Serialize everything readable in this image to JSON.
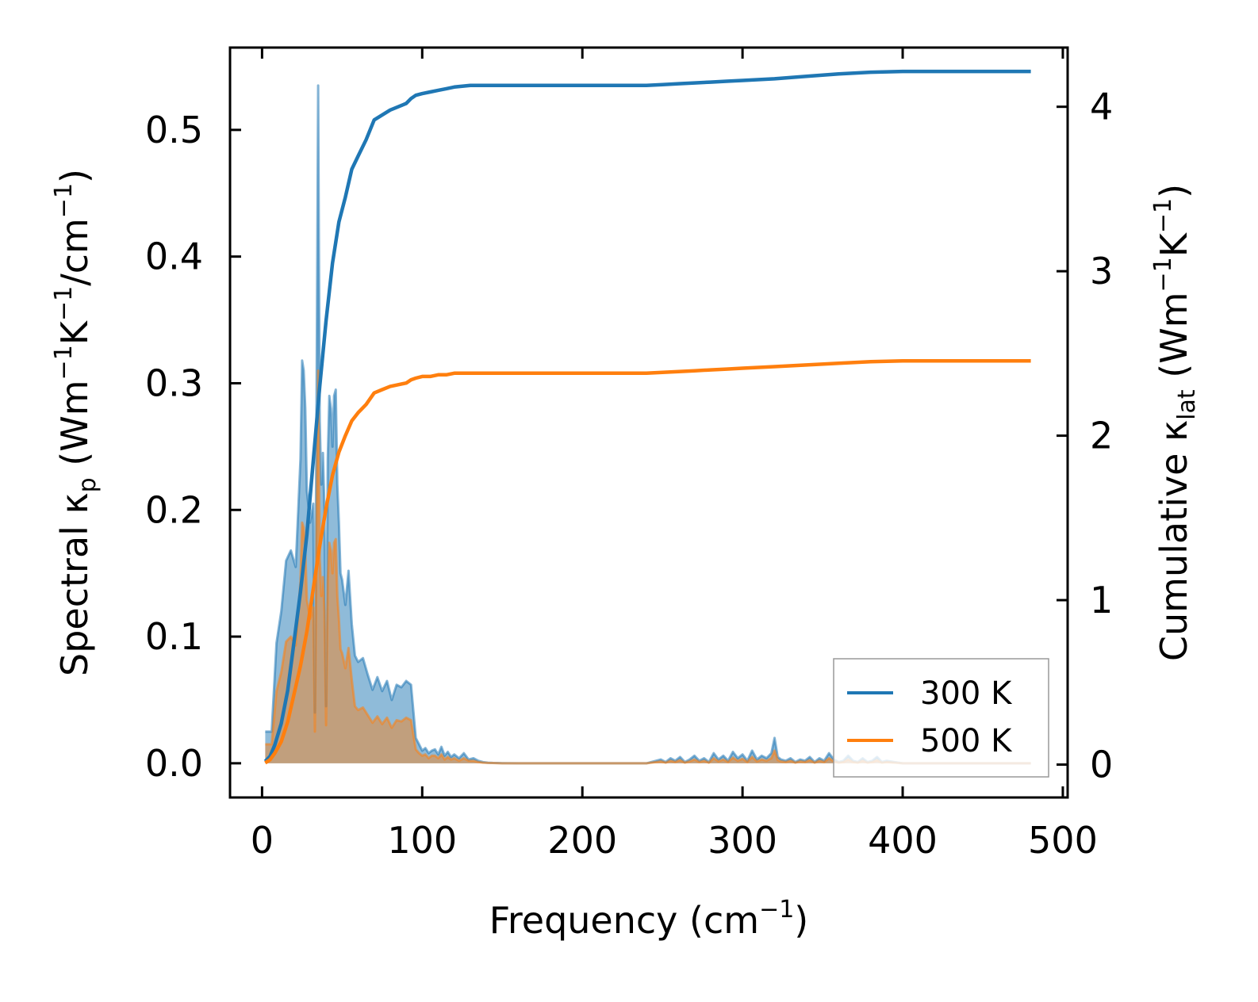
{
  "chart_data": {
    "type": "line",
    "xlabel": "Frequency (cm⁻¹)",
    "ylabel_left": "Spectral κₚ (Wm⁻¹K⁻¹/cm⁻¹)",
    "ylabel_right": "Cumulative κₗₐₜ (Wm⁻¹K⁻¹)",
    "xlim": [
      -20,
      503
    ],
    "ylim_left": [
      -0.027,
      0.565
    ],
    "ylim_right": [
      -0.2,
      4.36
    ],
    "x_ticks": [
      0,
      100,
      200,
      300,
      400,
      500
    ],
    "y_ticks_left": [
      0.0,
      0.1,
      0.2,
      0.3,
      0.4,
      0.5
    ],
    "y_ticks_right": [
      0,
      1,
      2,
      3,
      4
    ],
    "x_tick_labels": [
      "0",
      "100",
      "200",
      "300",
      "400",
      "500"
    ],
    "y_tick_labels_left": [
      "0.0",
      "0.1",
      "0.2",
      "0.3",
      "0.4",
      "0.5"
    ],
    "y_tick_labels_right": [
      "0",
      "1",
      "2",
      "3",
      "4"
    ],
    "legend": {
      "location": "lower-right",
      "entries": [
        "300 K",
        "500 K"
      ]
    },
    "series": [
      {
        "name": "300 K",
        "color": "#1f77b4",
        "spectral_x": [
          2,
          4,
          6,
          9,
          12,
          15,
          18,
          21,
          24,
          25,
          26,
          27,
          28,
          30,
          32,
          33,
          34,
          35,
          36,
          37,
          38,
          39,
          40,
          41,
          42,
          43,
          44,
          45,
          46,
          47,
          48,
          49,
          50,
          52,
          54,
          56,
          58,
          60,
          63,
          66,
          69,
          72,
          75,
          78,
          81,
          84,
          87,
          90,
          93,
          96,
          98,
          100,
          102,
          104,
          106,
          108,
          110,
          112,
          114,
          116,
          118,
          120,
          123,
          126,
          129,
          132,
          135,
          138,
          141,
          144,
          147,
          150,
          160,
          180,
          200,
          220,
          240,
          243,
          246,
          249,
          252,
          255,
          258,
          261,
          264,
          267,
          270,
          273,
          276,
          279,
          282,
          285,
          288,
          291,
          294,
          297,
          300,
          303,
          306,
          309,
          312,
          315,
          318,
          320,
          322,
          324,
          327,
          330,
          333,
          336,
          339,
          342,
          345,
          348,
          351,
          354,
          357,
          360,
          363,
          366,
          369,
          372,
          375,
          378,
          381,
          384,
          387,
          390,
          395,
          400,
          410,
          420,
          440,
          460,
          480
        ],
        "spectral_y": [
          0.025,
          0.025,
          0.025,
          0.095,
          0.12,
          0.16,
          0.168,
          0.155,
          0.24,
          0.318,
          0.31,
          0.28,
          0.215,
          0.19,
          0.205,
          0.04,
          0.28,
          0.535,
          0.27,
          0.22,
          0.245,
          0.2,
          0.045,
          0.24,
          0.29,
          0.28,
          0.25,
          0.29,
          0.295,
          0.22,
          0.19,
          0.15,
          0.145,
          0.125,
          0.152,
          0.11,
          0.085,
          0.08,
          0.083,
          0.07,
          0.058,
          0.068,
          0.057,
          0.065,
          0.05,
          0.062,
          0.06,
          0.065,
          0.062,
          0.02,
          0.015,
          0.01,
          0.012,
          0.008,
          0.01,
          0.011,
          0.007,
          0.013,
          0.006,
          0.009,
          0.005,
          0.007,
          0.004,
          0.008,
          0.003,
          0.004,
          0.002,
          0.001,
          0.0005,
          0.0003,
          0.0002,
          0.0001,
          0.0,
          0.0,
          0.0,
          0.0,
          0.0,
          0.001,
          0.002,
          0.003,
          0.001,
          0.004,
          0.002,
          0.005,
          0.001,
          0.003,
          0.006,
          0.002,
          0.004,
          0.001,
          0.008,
          0.003,
          0.006,
          0.002,
          0.009,
          0.004,
          0.007,
          0.002,
          0.01,
          0.003,
          0.006,
          0.004,
          0.008,
          0.02,
          0.005,
          0.003,
          0.002,
          0.004,
          0.001,
          0.003,
          0.002,
          0.005,
          0.001,
          0.004,
          0.002,
          0.008,
          0.003,
          0.001,
          0.002,
          0.006,
          0.002,
          0.001,
          0.004,
          0.001,
          0.002,
          0.005,
          0.001,
          0.002,
          0.001,
          0.0,
          0.0,
          0.0,
          0.0,
          0.0,
          0.0
        ],
        "cumulative_x": [
          2,
          5,
          8,
          12,
          16,
          20,
          24,
          28,
          32,
          36,
          40,
          44,
          48,
          52,
          56,
          60,
          65,
          70,
          75,
          80,
          85,
          90,
          93,
          96,
          100,
          105,
          110,
          115,
          120,
          130,
          140,
          150,
          170,
          200,
          230,
          240,
          250,
          260,
          270,
          280,
          290,
          300,
          320,
          340,
          360,
          380,
          400,
          420,
          440,
          460,
          480
        ],
        "cumulative_y": [
          0.02,
          0.05,
          0.12,
          0.25,
          0.45,
          0.75,
          1.05,
          1.4,
          1.85,
          2.3,
          2.7,
          3.05,
          3.3,
          3.45,
          3.62,
          3.7,
          3.8,
          3.92,
          3.95,
          3.98,
          4.0,
          4.02,
          4.05,
          4.07,
          4.08,
          4.09,
          4.1,
          4.11,
          4.12,
          4.13,
          4.13,
          4.13,
          4.13,
          4.13,
          4.13,
          4.13,
          4.135,
          4.14,
          4.145,
          4.15,
          4.155,
          4.16,
          4.17,
          4.185,
          4.2,
          4.21,
          4.215,
          4.215,
          4.215,
          4.215,
          4.215
        ]
      },
      {
        "name": "500 K",
        "color": "#ff7f0e",
        "spectral_x": [
          2,
          4,
          6,
          9,
          12,
          15,
          18,
          21,
          24,
          25,
          26,
          27,
          28,
          30,
          32,
          33,
          34,
          35,
          36,
          37,
          38,
          39,
          40,
          41,
          42,
          43,
          44,
          45,
          46,
          47,
          48,
          49,
          50,
          52,
          54,
          56,
          58,
          60,
          63,
          66,
          69,
          72,
          75,
          78,
          81,
          84,
          87,
          90,
          93,
          96,
          98,
          100,
          102,
          104,
          106,
          108,
          110,
          112,
          114,
          116,
          118,
          120,
          123,
          126,
          129,
          132,
          135,
          138,
          141,
          144,
          147,
          150,
          160,
          180,
          200,
          220,
          240,
          243,
          246,
          249,
          252,
          255,
          258,
          261,
          264,
          267,
          270,
          273,
          276,
          279,
          282,
          285,
          288,
          291,
          294,
          297,
          300,
          303,
          306,
          309,
          312,
          315,
          318,
          320,
          322,
          324,
          327,
          330,
          333,
          336,
          339,
          342,
          345,
          348,
          351,
          354,
          357,
          360,
          363,
          366,
          369,
          372,
          375,
          378,
          381,
          384,
          387,
          390,
          395,
          400,
          410,
          420,
          440,
          460,
          480
        ],
        "spectral_y": [
          0.015,
          0.015,
          0.015,
          0.057,
          0.072,
          0.096,
          0.1,
          0.093,
          0.144,
          0.19,
          0.186,
          0.168,
          0.129,
          0.114,
          0.123,
          0.025,
          0.168,
          0.31,
          0.162,
          0.132,
          0.147,
          0.12,
          0.03,
          0.144,
          0.174,
          0.168,
          0.15,
          0.174,
          0.177,
          0.132,
          0.114,
          0.09,
          0.087,
          0.075,
          0.091,
          0.066,
          0.045,
          0.042,
          0.044,
          0.038,
          0.032,
          0.037,
          0.031,
          0.036,
          0.028,
          0.034,
          0.033,
          0.036,
          0.034,
          0.011,
          0.008,
          0.006,
          0.007,
          0.004,
          0.006,
          0.006,
          0.004,
          0.007,
          0.003,
          0.005,
          0.003,
          0.004,
          0.002,
          0.004,
          0.002,
          0.002,
          0.001,
          0.0005,
          0.0003,
          0.0002,
          0.0001,
          0.0,
          0.0,
          0.0,
          0.0,
          0.0,
          0.0,
          0.0005,
          0.001,
          0.0015,
          0.0005,
          0.002,
          0.001,
          0.0025,
          0.0005,
          0.0015,
          0.003,
          0.001,
          0.002,
          0.0005,
          0.004,
          0.0015,
          0.003,
          0.001,
          0.0045,
          0.002,
          0.0035,
          0.001,
          0.005,
          0.0015,
          0.003,
          0.002,
          0.004,
          0.01,
          0.0025,
          0.0015,
          0.001,
          0.002,
          0.0005,
          0.0015,
          0.001,
          0.0025,
          0.0005,
          0.002,
          0.001,
          0.004,
          0.0015,
          0.0005,
          0.001,
          0.003,
          0.001,
          0.0005,
          0.002,
          0.0005,
          0.001,
          0.0025,
          0.0005,
          0.001,
          0.0005,
          0.0,
          0.0,
          0.0,
          0.0,
          0.0,
          0.0
        ],
        "cumulative_x": [
          2,
          5,
          8,
          12,
          16,
          20,
          24,
          28,
          32,
          36,
          40,
          44,
          48,
          52,
          56,
          60,
          65,
          70,
          75,
          80,
          85,
          90,
          93,
          96,
          100,
          105,
          110,
          115,
          120,
          130,
          140,
          150,
          170,
          200,
          230,
          240,
          250,
          260,
          270,
          280,
          290,
          300,
          320,
          340,
          360,
          380,
          400,
          420,
          440,
          460,
          480
        ],
        "cumulative_y": [
          0.01,
          0.03,
          0.07,
          0.14,
          0.26,
          0.43,
          0.6,
          0.81,
          1.07,
          1.33,
          1.56,
          1.76,
          1.9,
          2.0,
          2.09,
          2.14,
          2.19,
          2.26,
          2.28,
          2.3,
          2.31,
          2.32,
          2.34,
          2.35,
          2.36,
          2.36,
          2.37,
          2.37,
          2.38,
          2.38,
          2.38,
          2.38,
          2.38,
          2.38,
          2.38,
          2.38,
          2.385,
          2.39,
          2.395,
          2.4,
          2.405,
          2.41,
          2.42,
          2.43,
          2.44,
          2.45,
          2.455,
          2.455,
          2.455,
          2.455,
          2.455
        ]
      }
    ]
  }
}
